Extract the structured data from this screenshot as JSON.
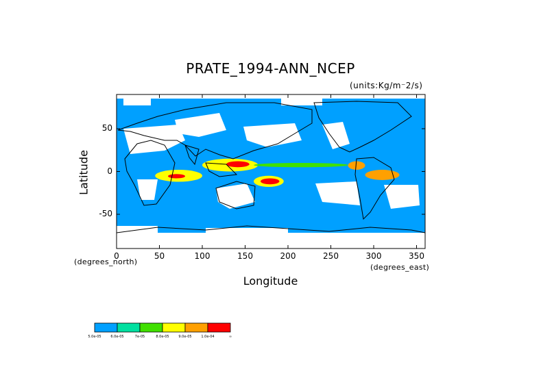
{
  "title": "PRATE_1994-ANN_NCEP",
  "units": "(units:Kg/m⁻2/s)",
  "axes": {
    "ylabel": "Latitude",
    "xlabel": "Longitude",
    "y_ticks": [
      "50",
      "0",
      "-50"
    ],
    "x_ticks": [
      "0",
      "50",
      "100",
      "150",
      "200",
      "250",
      "300",
      "350"
    ],
    "y_unit_note": "(degrees_north)",
    "x_unit_note": "(degrees_east)",
    "lon_range": [
      0,
      360
    ],
    "lat_range": [
      -90,
      90
    ]
  },
  "colorbar": {
    "colors": [
      "#00a0ff",
      "#00e0a0",
      "#40e000",
      "#ffff00",
      "#ffa000",
      "#ff0000"
    ],
    "labels": [
      "5.0e-05",
      "6.0e-05",
      "7e-05",
      "8.0e-05",
      "9.0e-05",
      "1.0e-04",
      "∞"
    ]
  },
  "colors": {
    "ocean_background": "#00a0ff",
    "below_threshold": "#ffffff",
    "coastline": "#000000"
  },
  "chart_data": {
    "type": "heatmap",
    "title": "PRATE_1994-ANN_NCEP",
    "xlabel": "Longitude",
    "ylabel": "Latitude",
    "xlim": [
      0,
      360
    ],
    "ylim": [
      -90,
      90
    ],
    "x_ticks": [
      0,
      50,
      100,
      150,
      200,
      250,
      300,
      350
    ],
    "y_ticks": [
      -50,
      0,
      50
    ],
    "contour_levels": [
      5e-05,
      6e-05,
      7e-05,
      8e-05,
      9e-05,
      0.0001
    ],
    "regions": [
      {
        "level": 0,
        "lon": [
          0,
          360
        ],
        "lat": [
          -80,
          85
        ]
      },
      {
        "level": 3,
        "lon": [
          45,
          100
        ],
        "lat": [
          -12,
          2
        ]
      },
      {
        "level": 5,
        "lon": [
          60,
          80
        ],
        "lat": [
          -8,
          -3
        ]
      },
      {
        "level": 3,
        "lon": [
          100,
          165
        ],
        "lat": [
          0,
          15
        ]
      },
      {
        "level": 5,
        "lon": [
          128,
          155
        ],
        "lat": [
          5,
          12
        ]
      },
      {
        "level": 3,
        "lon": [
          160,
          195
        ],
        "lat": [
          -18,
          -5
        ]
      },
      {
        "level": 5,
        "lon": [
          168,
          190
        ],
        "lat": [
          -15,
          -8
        ]
      },
      {
        "level": 2,
        "lon": [
          160,
          270
        ],
        "lat": [
          5,
          10
        ]
      },
      {
        "level": 4,
        "lon": [
          270,
          290
        ],
        "lat": [
          2,
          12
        ]
      },
      {
        "level": 4,
        "lon": [
          290,
          330
        ],
        "lat": [
          -10,
          2
        ]
      }
    ]
  }
}
